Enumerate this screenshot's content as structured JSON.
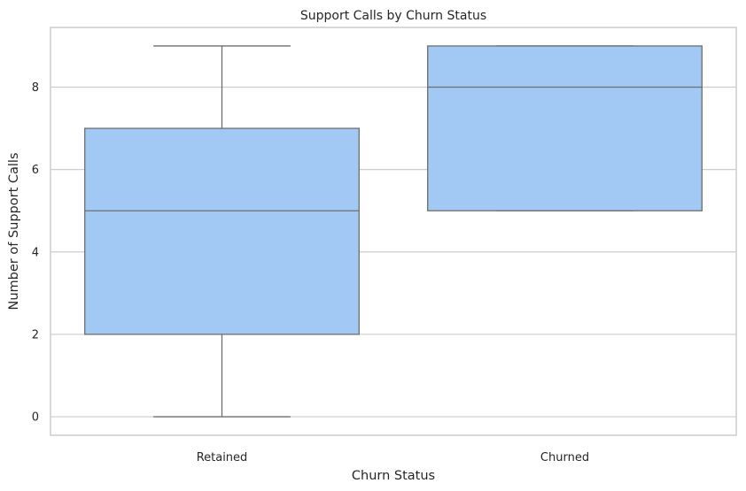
{
  "chart_data": {
    "type": "box",
    "title": "Support Calls by Churn Status",
    "xlabel": "Churn Status",
    "ylabel": "Number of Support Calls",
    "categories": [
      "Retained",
      "Churned"
    ],
    "boxes": [
      {
        "category": "Retained",
        "min": 0,
        "q1": 2,
        "median": 5,
        "q3": 7,
        "max": 9
      },
      {
        "category": "Churned",
        "min": 5,
        "q1": 5,
        "median": 8,
        "q3": 9,
        "max": 9
      }
    ],
    "yticks": [
      "0",
      "2",
      "4",
      "6",
      "8"
    ],
    "ylim": [
      -0.45,
      9.45
    ],
    "grid": true,
    "box_color": "#a1c9f4",
    "line_color": "#6e6e6e",
    "grid_color": "#cccccc"
  }
}
